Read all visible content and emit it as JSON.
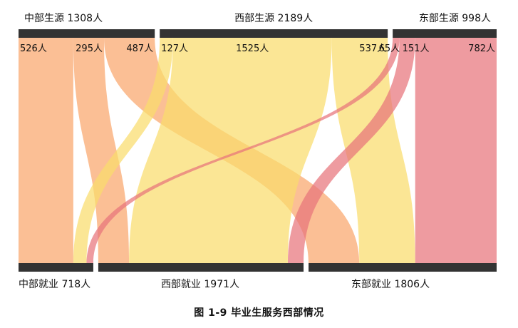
{
  "chart_data": {
    "type": "sankey",
    "caption": "图 1-9   毕业生服务西部情况",
    "sources": [
      {
        "id": "central",
        "name": "中部生源",
        "total_label": "1308人",
        "total": 1308
      },
      {
        "id": "west",
        "name": "西部生源",
        "total_label": "2189人",
        "total": 2189
      },
      {
        "id": "east",
        "name": "东部生源",
        "total_label": "998人",
        "total": 998
      }
    ],
    "targets": [
      {
        "id": "central",
        "name": "中部就业",
        "total_label": "718人",
        "total": 718
      },
      {
        "id": "west",
        "name": "西部就业",
        "total_label": "1971人",
        "total": 1971
      },
      {
        "id": "east",
        "name": "东部就业",
        "total_label": "1806人",
        "total": 1806
      }
    ],
    "flows": [
      {
        "source": "central",
        "target": "central",
        "value": 526,
        "label": "526人"
      },
      {
        "source": "central",
        "target": "west",
        "value": 295,
        "label": "295人"
      },
      {
        "source": "central",
        "target": "east",
        "value": 487,
        "label": "487人"
      },
      {
        "source": "west",
        "target": "central",
        "value": 127,
        "label": "127人"
      },
      {
        "source": "west",
        "target": "west",
        "value": 1525,
        "label": "1525人"
      },
      {
        "source": "west",
        "target": "east",
        "value": 537,
        "label": "537人"
      },
      {
        "source": "east",
        "target": "central",
        "value": 65,
        "label": "65人"
      },
      {
        "source": "east",
        "target": "west",
        "value": 151,
        "label": "151人"
      },
      {
        "source": "east",
        "target": "east",
        "value": 782,
        "label": "782人"
      }
    ],
    "colors": {
      "central": "#F9A66C",
      "west": "#F9DC6C",
      "east": "#E8747C",
      "node_bar": "#333333",
      "text": "#111111"
    }
  }
}
